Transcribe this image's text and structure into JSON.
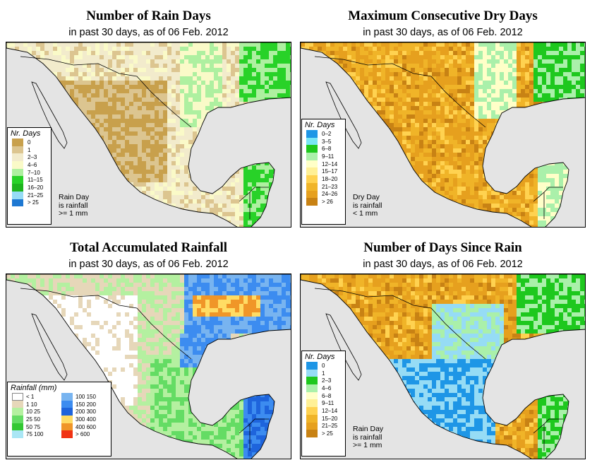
{
  "panels": [
    {
      "id": "rain-days",
      "title": "Number of Rain Days",
      "subtitle": "in past 30 days, as of  06 Feb. 2012",
      "legend": {
        "title": "Nr. Days",
        "items": [
          {
            "label": "0",
            "color": "#c8a04c"
          },
          {
            "label": "1",
            "color": "#dcc590"
          },
          {
            "label": "2–3",
            "color": "#f2ebcc"
          },
          {
            "label": "4–6",
            "color": "#fafac8"
          },
          {
            "label": "7–10",
            "color": "#aef0a0"
          },
          {
            "label": "11–15",
            "color": "#28d228"
          },
          {
            "label": "16–20",
            "color": "#1eb41e"
          },
          {
            "label": "21–25",
            "color": "#96dcf5"
          },
          {
            "label": "> 25",
            "color": "#1e78d2"
          }
        ]
      },
      "note": [
        "Rain Day",
        "is rainfall",
        ">= 1 mm"
      ]
    },
    {
      "id": "dry-days",
      "title": "Maximum Consecutive Dry Days",
      "subtitle": "in past 30 days, as of  06 Feb. 2012",
      "legend": {
        "title": "Nr. Days",
        "items": [
          {
            "label": "0–2",
            "color": "#1e96e6"
          },
          {
            "label": "3–5",
            "color": "#78e6f5"
          },
          {
            "label": "6–8",
            "color": "#1ec81e"
          },
          {
            "label": "9–11",
            "color": "#aaf0aa"
          },
          {
            "label": "12–14",
            "color": "#ffffc8"
          },
          {
            "label": "15–17",
            "color": "#fff096"
          },
          {
            "label": "18–20",
            "color": "#ffd250"
          },
          {
            "label": "21–23",
            "color": "#f0b428"
          },
          {
            "label": "24–26",
            "color": "#e6a01e"
          },
          {
            "label": "> 26",
            "color": "#c88214"
          }
        ]
      },
      "note": [
        "Dry Day",
        "is rainfall",
        "< 1 mm"
      ]
    },
    {
      "id": "rainfall",
      "title": "Total Accumulated Rainfall",
      "subtitle": "in past 30 days, as of  06 Feb. 2012",
      "legend": {
        "title": "Rainfall (mm)",
        "left": [
          {
            "label": "< 1",
            "color": "#ffffff"
          },
          {
            "label": "1   10",
            "color": "#e6d7b9"
          },
          {
            "label": "10   25",
            "color": "#b4f0a0"
          },
          {
            "label": "25   50",
            "color": "#64dc64"
          },
          {
            "label": "50   75",
            "color": "#32c832"
          },
          {
            "label": "75   100",
            "color": "#aae6f5"
          }
        ],
        "right": [
          {
            "label": "100  150",
            "color": "#78b4f0"
          },
          {
            "label": "150  200",
            "color": "#3c8cf0"
          },
          {
            "label": "200  300",
            "color": "#1e64dc"
          },
          {
            "label": "300  400",
            "color": "#ffdc64"
          },
          {
            "label": "400  600",
            "color": "#f09628"
          },
          {
            "label": "> 600",
            "color": "#f03214"
          }
        ]
      },
      "note": []
    },
    {
      "id": "since-rain",
      "title": "Number of Days Since Rain",
      "subtitle": "in past 30 days, as of  06 Feb. 2012",
      "legend": {
        "title": "Nr. Days",
        "items": [
          {
            "label": "0",
            "color": "#1e96e6"
          },
          {
            "label": "1",
            "color": "#96dcf5"
          },
          {
            "label": "2–3",
            "color": "#1ec81e"
          },
          {
            "label": "4–6",
            "color": "#aaf0aa"
          },
          {
            "label": "6–8",
            "color": "#ffffc8"
          },
          {
            "label": "9–11",
            "color": "#fff096"
          },
          {
            "label": "12–14",
            "color": "#ffd250"
          },
          {
            "label": "15–20",
            "color": "#f0b428"
          },
          {
            "label": "21–25",
            "color": "#e6a01e"
          },
          {
            "label": "> 25",
            "color": "#c88214"
          }
        ]
      },
      "note": [
        "Rain Day",
        "is rainfall",
        ">= 1 mm"
      ]
    }
  ],
  "map_colors": {
    "ocean": "#e4e4e4",
    "border": "#000000"
  }
}
